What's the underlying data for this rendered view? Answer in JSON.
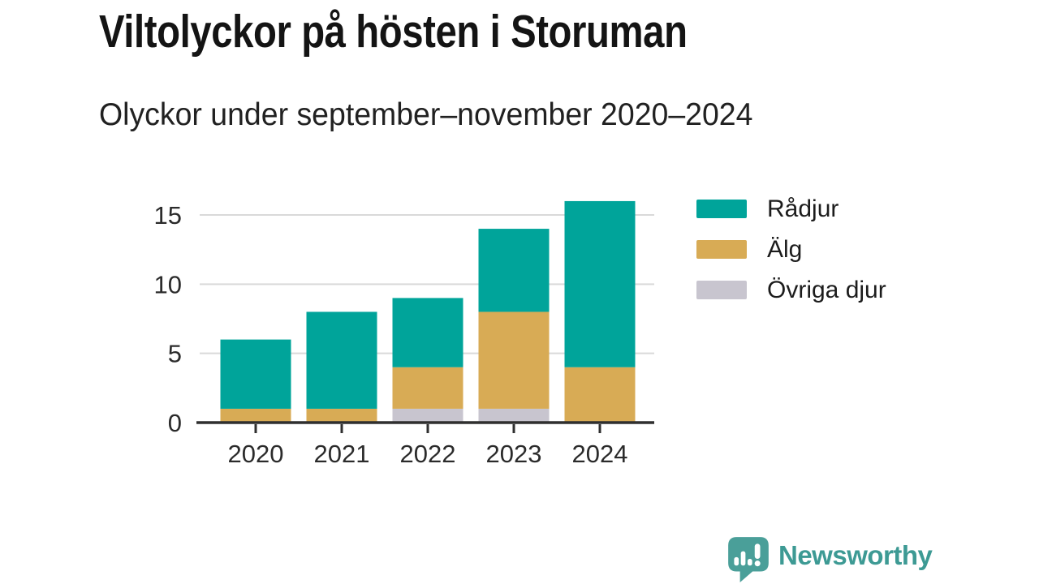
{
  "header": {
    "title": "Viltolyckor på hösten i Storuman",
    "subtitle": "Olyckor under september–november 2020–2024"
  },
  "chart_data": {
    "type": "bar",
    "stacked": true,
    "title": "Viltolyckor på hösten i Storuman",
    "subtitle": "Olyckor under september–november 2020–2024",
    "categories": [
      "2020",
      "2021",
      "2022",
      "2023",
      "2024"
    ],
    "series": [
      {
        "name": "Rådjur",
        "color": "#00a49a",
        "values": [
          5,
          7,
          5,
          6,
          12
        ]
      },
      {
        "name": "Älg",
        "color": "#d8ab55",
        "values": [
          1,
          1,
          3,
          7,
          4
        ]
      },
      {
        "name": "Övriga djur",
        "color": "#c8c5cf",
        "values": [
          0,
          0,
          1,
          1,
          0
        ]
      }
    ],
    "stack_order_bottom_to_top": [
      "Övriga djur",
      "Älg",
      "Rådjur"
    ],
    "totals": [
      6,
      8,
      9,
      14,
      16
    ],
    "xlabel": "",
    "ylabel": "",
    "ylim": [
      0,
      16
    ],
    "yticks": [
      0,
      5,
      10,
      15
    ],
    "grid": "horizontal",
    "grid_color": "#d9d9d9",
    "axis_color": "#2f2f2f",
    "tick_label_color": "#2b2b2b",
    "legend_position": "right"
  },
  "footer": {
    "brand": "Newsworthy",
    "brand_color": "#3d9a94",
    "logo_icon": "speech-bubble-bar-chart-icon",
    "logo_icon_color": "#4a9f99"
  }
}
